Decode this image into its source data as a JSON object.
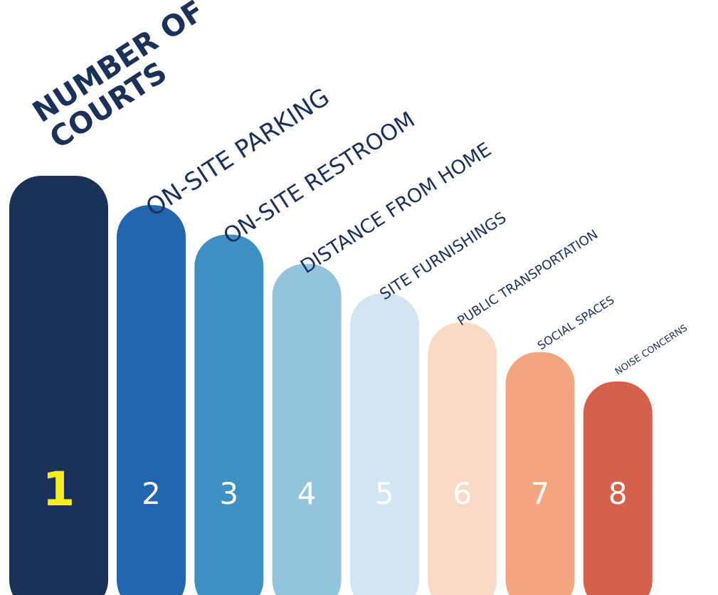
{
  "chart_data": {
    "type": "bar",
    "ranks": [
      "1",
      "2",
      "3",
      "4",
      "5",
      "6",
      "7",
      "8"
    ],
    "categories": [
      "NUMBER OF COURTS",
      "ON-SITE PARKING",
      "ON-SITE RESTROOM",
      "DISTANCE FROM HOME",
      "SITE FURNISHINGS",
      "PUBLIC TRANSPORTATION",
      "SOCIAL SPACES",
      "NOISE CONCERNS"
    ],
    "label_lines": [
      [
        "NUMBER OF",
        "COURTS"
      ],
      [
        "ON-SITE PARKING"
      ],
      [
        "ON-SITE RESTROOM"
      ],
      [
        "DISTANCE FROM HOME"
      ],
      [
        "SITE FURNISHINGS"
      ],
      [
        "PUBLIC TRANSPORTATION"
      ],
      [
        "SOCIAL SPACES"
      ],
      [
        "NOISE CONCERNS"
      ]
    ],
    "values": [
      8,
      7,
      6,
      5,
      4,
      3,
      2,
      1
    ],
    "colors": [
      "#1c3158",
      "#2166ae",
      "#3c91c2",
      "#92c4de",
      "#d2e6f1",
      "#fad9c6",
      "#f3a57e",
      "#d6604b"
    ],
    "rank_colors": [
      "#f5ee1c",
      "#ffffff",
      "#ffffff",
      "#ffffff",
      "#ffffff",
      "#ffffff",
      "#ffffff",
      "#ffffff"
    ],
    "label_color": "#1c3158",
    "title": "",
    "xlabel": "",
    "ylabel": ""
  }
}
